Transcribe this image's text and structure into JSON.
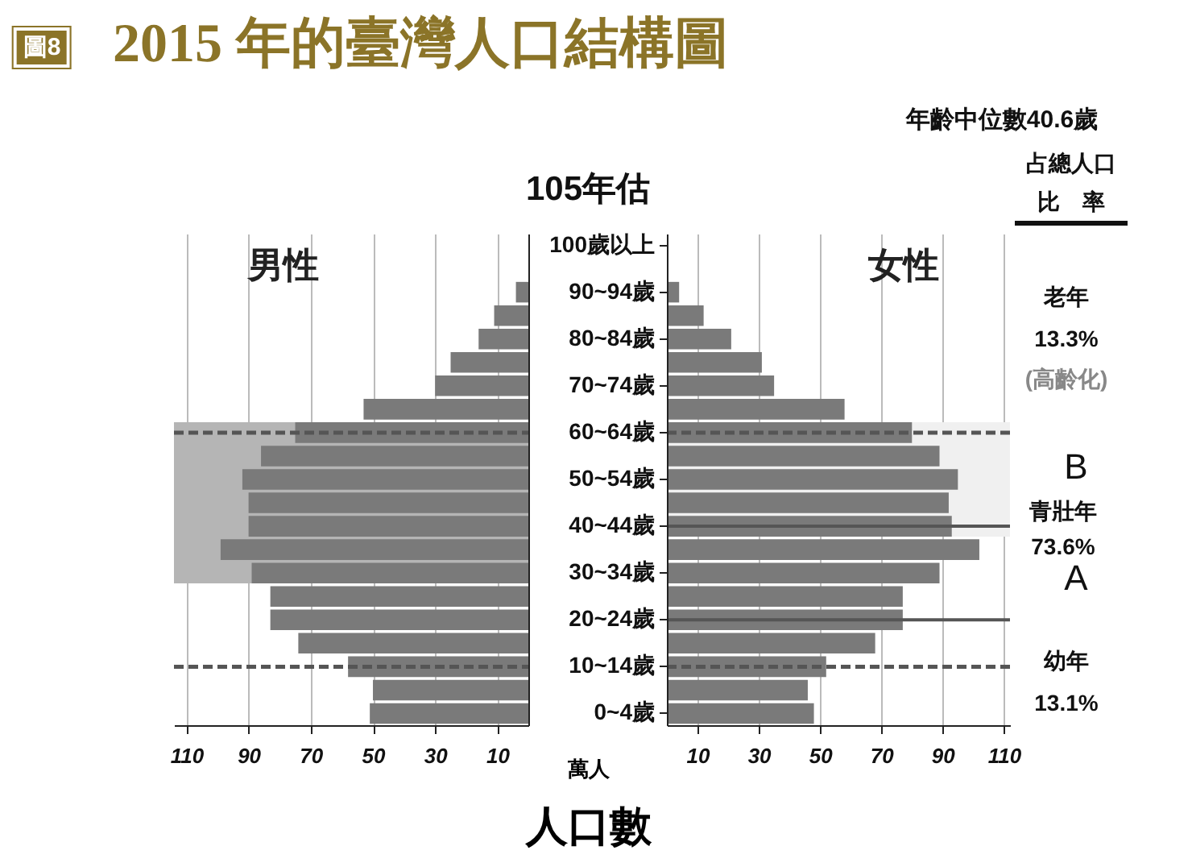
{
  "chart_data": [
    {
      "type": "bar",
      "orientation": "horizontal",
      "title": "2015 年的臺灣人口結構圖",
      "subtitle": "105年估",
      "xlabel": "人口數",
      "annotations": [
        "圖8"
      ],
      "categories": [
        "100歲以上",
        null,
        "90~94歲",
        null,
        "80~84歲",
        null,
        "70~74歲",
        null,
        "60~64歲",
        null,
        "50~54歲",
        null,
        "40~44歲",
        null,
        "30~34歲",
        null,
        "20~24歲",
        null,
        "10~14歲",
        null,
        "0~4歲"
      ],
      "series": [
        {
          "name": "男性",
          "color": "#7a7a7a",
          "values": [
            0,
            0,
            4,
            11,
            16,
            25,
            30,
            53,
            75,
            86,
            92,
            90,
            90,
            99,
            89,
            83,
            83,
            74,
            58,
            50,
            51
          ]
        }
      ],
      "xlim": [
        114,
        0
      ],
      "xticks": [
        110,
        90,
        70,
        50,
        30,
        10
      ],
      "grid": "x",
      "legend": "top left",
      "tick_labels": "x",
      "bands": [
        {
          "axis": "y",
          "from": "60~64歲",
          "to": "30~34歲",
          "color": "#b5b5b5"
        }
      ],
      "ref_lines": [
        {
          "axis": "y",
          "value": "60~64歲",
          "line_style": "dashed",
          "color": "#555555"
        },
        {
          "axis": "y",
          "value": "10~14歲",
          "line_style": "dashed",
          "color": "#555555"
        }
      ]
    },
    {
      "type": "bar",
      "orientation": "horizontal",
      "xlabel": "萬人",
      "annotations": [
        "年齡中位數40.6歲",
        "占總人口",
        "比　率",
        "老年",
        "13.3%",
        "(高齡化)",
        "B",
        "青壯年",
        "73.6%",
        "A",
        "幼年",
        "13.1%"
      ],
      "categories": [
        "100歲以上",
        null,
        "90~94歲",
        null,
        "80~84歲",
        null,
        "70~74歲",
        null,
        "60~64歲",
        null,
        "50~54歲",
        null,
        "40~44歲",
        null,
        "30~34歲",
        null,
        "20~24歲",
        null,
        "10~14歲",
        null,
        "0~4歲"
      ],
      "series": [
        {
          "name": "女性",
          "color": "#7a7a7a",
          "values": [
            0,
            0,
            4,
            12,
            21,
            31,
            35,
            58,
            80,
            89,
            95,
            92,
            93,
            102,
            89,
            77,
            77,
            68,
            52,
            46,
            48
          ]
        }
      ],
      "xlim": [
        0,
        112
      ],
      "xticks": [
        10,
        30,
        50,
        70,
        90,
        110
      ],
      "grid": "x",
      "legend": "top right",
      "bands": [
        {
          "axis": "y",
          "from": "60~64歲",
          "to": "40~44歲",
          "color": "#f0f0f0"
        }
      ],
      "ref_lines": [
        {
          "axis": "y",
          "value": "60~64歲",
          "line_style": "dashed",
          "color": "#555555"
        },
        {
          "axis": "y",
          "value": "10~14歲",
          "line_style": "dashed",
          "color": "#555555"
        },
        {
          "axis": "y",
          "value": "40~44歲",
          "line_style": "solid",
          "color": "#555555"
        },
        {
          "axis": "y",
          "value": "20~24歲",
          "line_style": "solid",
          "color": "#555555"
        }
      ]
    }
  ]
}
